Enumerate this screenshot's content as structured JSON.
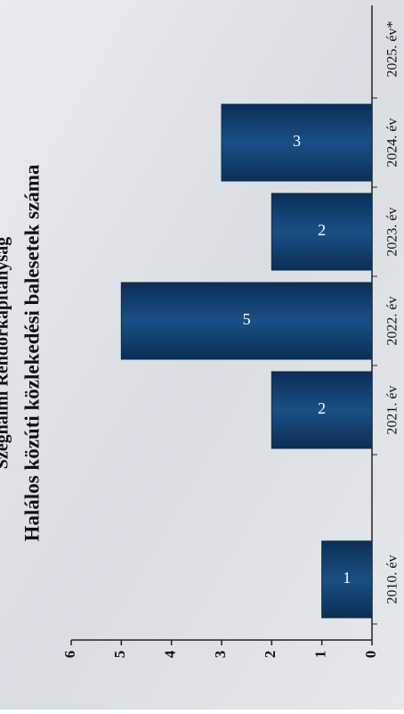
{
  "chart_data": {
    "type": "bar",
    "subtitle": "Szeghalmi Rendőrkapitányság",
    "title": "Halálos közúti közlekedési balesetek száma",
    "categories": [
      "2010. év",
      "2021. év",
      "2022. év",
      "2023. év",
      "2024. év",
      "2025. év*"
    ],
    "values": [
      1,
      2,
      5,
      2,
      3,
      null
    ],
    "color": "#123f6b",
    "ylim": [
      0,
      6
    ],
    "yticks": [
      0,
      1,
      2,
      3,
      4,
      5,
      6
    ]
  }
}
